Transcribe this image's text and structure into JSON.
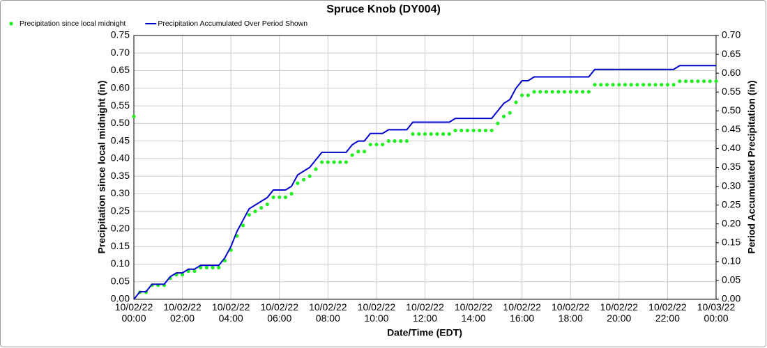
{
  "chart_data": {
    "type": "line-scatter",
    "title": "Spruce Knob (DY004)",
    "xlabel": "Date/Time (EDT)",
    "ylabel": "Precipitation since local midnight (in)",
    "y2label": "Period Accumulated Precipitation (in)",
    "x": [
      "10/02/22 00:00",
      "10/02/22 00:15",
      "10/02/22 00:30",
      "10/02/22 00:45",
      "10/02/22 01:00",
      "10/02/22 01:15",
      "10/02/22 01:30",
      "10/02/22 01:45",
      "10/02/22 02:00",
      "10/02/22 02:15",
      "10/02/22 02:30",
      "10/02/22 02:45",
      "10/02/22 03:00",
      "10/02/22 03:15",
      "10/02/22 03:30",
      "10/02/22 03:45",
      "10/02/22 04:00",
      "10/02/22 04:15",
      "10/02/22 04:30",
      "10/02/22 04:45",
      "10/02/22 05:00",
      "10/02/22 05:15",
      "10/02/22 05:30",
      "10/02/22 05:45",
      "10/02/22 06:00",
      "10/02/22 06:15",
      "10/02/22 06:30",
      "10/02/22 06:45",
      "10/02/22 07:00",
      "10/02/22 07:15",
      "10/02/22 07:30",
      "10/02/22 07:45",
      "10/02/22 08:00",
      "10/02/22 08:15",
      "10/02/22 08:30",
      "10/02/22 08:45",
      "10/02/22 09:00",
      "10/02/22 09:15",
      "10/02/22 09:30",
      "10/02/22 09:45",
      "10/02/22 10:00",
      "10/02/22 10:15",
      "10/02/22 10:30",
      "10/02/22 10:45",
      "10/02/22 11:00",
      "10/02/22 11:15",
      "10/02/22 11:30",
      "10/02/22 11:45",
      "10/02/22 12:00",
      "10/02/22 12:15",
      "10/02/22 12:30",
      "10/02/22 12:45",
      "10/02/22 13:00",
      "10/02/22 13:15",
      "10/02/22 13:30",
      "10/02/22 13:45",
      "10/02/22 14:00",
      "10/02/22 14:15",
      "10/02/22 14:30",
      "10/02/22 14:45",
      "10/02/22 15:00",
      "10/02/22 15:15",
      "10/02/22 15:30",
      "10/02/22 15:45",
      "10/02/22 16:00",
      "10/02/22 16:15",
      "10/02/22 16:30",
      "10/02/22 16:45",
      "10/02/22 17:00",
      "10/02/22 17:15",
      "10/02/22 17:30",
      "10/02/22 17:45",
      "10/02/22 18:00",
      "10/02/22 18:15",
      "10/02/22 18:30",
      "10/02/22 18:45",
      "10/02/22 19:00",
      "10/02/22 19:15",
      "10/02/22 19:30",
      "10/02/22 19:45",
      "10/02/22 20:00",
      "10/02/22 20:15",
      "10/02/22 20:30",
      "10/02/22 20:45",
      "10/02/22 21:00",
      "10/02/22 21:15",
      "10/02/22 21:30",
      "10/02/22 21:45",
      "10/02/22 22:00",
      "10/02/22 22:15",
      "10/02/22 22:30",
      "10/02/22 22:45",
      "10/02/22 23:00",
      "10/02/22 23:15",
      "10/02/22 23:30",
      "10/02/22 23:45",
      "10/03/22 00:00"
    ],
    "series": [
      {
        "name": "Precipitation since local midnight",
        "color": "#22ee22",
        "style": "dots",
        "values": [
          0.52,
          0.02,
          0.02,
          0.04,
          0.04,
          0.04,
          0.06,
          0.07,
          0.07,
          0.08,
          0.08,
          0.09,
          0.09,
          0.09,
          0.09,
          0.11,
          0.14,
          0.18,
          0.21,
          0.24,
          0.25,
          0.26,
          0.27,
          0.29,
          0.29,
          0.29,
          0.3,
          0.33,
          0.34,
          0.35,
          0.37,
          0.39,
          0.39,
          0.39,
          0.39,
          0.39,
          0.41,
          0.42,
          0.42,
          0.44,
          0.44,
          0.44,
          0.45,
          0.45,
          0.45,
          0.45,
          0.47,
          0.47,
          0.47,
          0.47,
          0.47,
          0.47,
          0.47,
          0.48,
          0.48,
          0.48,
          0.48,
          0.48,
          0.48,
          0.48,
          0.5,
          0.52,
          0.53,
          0.56,
          0.58,
          0.58,
          0.59,
          0.59,
          0.59,
          0.59,
          0.59,
          0.59,
          0.59,
          0.59,
          0.59,
          0.59,
          0.61,
          0.61,
          0.61,
          0.61,
          0.61,
          0.61,
          0.61,
          0.61,
          0.61,
          0.61,
          0.61,
          0.61,
          0.61,
          0.61,
          0.62,
          0.62,
          0.62,
          0.62,
          0.62,
          0.62,
          0.62
        ]
      },
      {
        "name": "Precipitation Accumulated Over Period Shown",
        "color": "#0000cc",
        "style": "line",
        "axis": "y2",
        "values": [
          0.0,
          0.02,
          0.02,
          0.04,
          0.04,
          0.04,
          0.06,
          0.07,
          0.07,
          0.08,
          0.08,
          0.09,
          0.09,
          0.09,
          0.09,
          0.11,
          0.14,
          0.18,
          0.21,
          0.24,
          0.25,
          0.26,
          0.27,
          0.29,
          0.29,
          0.29,
          0.3,
          0.33,
          0.34,
          0.35,
          0.37,
          0.39,
          0.39,
          0.39,
          0.39,
          0.39,
          0.41,
          0.42,
          0.42,
          0.44,
          0.44,
          0.44,
          0.45,
          0.45,
          0.45,
          0.45,
          0.47,
          0.47,
          0.47,
          0.47,
          0.47,
          0.47,
          0.47,
          0.48,
          0.48,
          0.48,
          0.48,
          0.48,
          0.48,
          0.48,
          0.5,
          0.52,
          0.53,
          0.56,
          0.58,
          0.58,
          0.59,
          0.59,
          0.59,
          0.59,
          0.59,
          0.59,
          0.59,
          0.59,
          0.59,
          0.59,
          0.61,
          0.61,
          0.61,
          0.61,
          0.61,
          0.61,
          0.61,
          0.61,
          0.61,
          0.61,
          0.61,
          0.61,
          0.61,
          0.61,
          0.62,
          0.62,
          0.62,
          0.62,
          0.62,
          0.62,
          0.62
        ]
      }
    ],
    "xlim": [
      "10/02/22 00:00",
      "10/03/22 00:00"
    ],
    "xticks": [
      "10/02/22 00:00",
      "10/02/22 02:00",
      "10/02/22 04:00",
      "10/02/22 06:00",
      "10/02/22 08:00",
      "10/02/22 10:00",
      "10/02/22 12:00",
      "10/02/22 14:00",
      "10/02/22 16:00",
      "10/02/22 18:00",
      "10/02/22 20:00",
      "10/02/22 22:00",
      "10/03/22 00:00"
    ],
    "ylim": [
      0,
      0.75
    ],
    "yticks": [
      {
        "value": 0,
        "label": "0.00"
      },
      {
        "value": 0.05,
        "label": "0.05"
      },
      {
        "value": 0.1,
        "label": "0.10"
      },
      {
        "value": 0.15,
        "label": "0.15"
      },
      {
        "value": 0.2,
        "label": "0.20"
      },
      {
        "value": 0.25,
        "label": "0.25"
      },
      {
        "value": 0.3,
        "label": "0.30"
      },
      {
        "value": 0.35,
        "label": "0.35"
      },
      {
        "value": 0.4,
        "label": "0.40"
      },
      {
        "value": 0.45,
        "label": "0.45"
      },
      {
        "value": 0.5,
        "label": "0.50"
      },
      {
        "value": 0.55,
        "label": "0.55"
      },
      {
        "value": 0.6,
        "label": "0.60"
      },
      {
        "value": 0.65,
        "label": "0.65"
      },
      {
        "value": 0.7,
        "label": "0.70"
      },
      {
        "value": 0.75,
        "label": "0.75"
      }
    ],
    "y2lim": [
      0,
      0.7
    ],
    "y2ticks": [
      {
        "value": 0,
        "label": "0.00"
      },
      {
        "value": 0.05,
        "label": "0.05"
      },
      {
        "value": 0.1,
        "label": "0.10"
      },
      {
        "value": 0.15,
        "label": "0.15"
      },
      {
        "value": 0.2,
        "label": "0.20"
      },
      {
        "value": 0.25,
        "label": "0.25"
      },
      {
        "value": 0.3,
        "label": "0.30"
      },
      {
        "value": 0.35,
        "label": "0.35"
      },
      {
        "value": 0.4,
        "label": "0.40"
      },
      {
        "value": 0.45,
        "label": "0.45"
      },
      {
        "value": 0.5,
        "label": "0.50"
      },
      {
        "value": 0.55,
        "label": "0.55"
      },
      {
        "value": 0.6,
        "label": "0.60"
      },
      {
        "value": 0.65,
        "label": "0.65"
      },
      {
        "value": 0.7,
        "label": "0.70"
      }
    ],
    "grid": true,
    "legend": "top-left"
  }
}
